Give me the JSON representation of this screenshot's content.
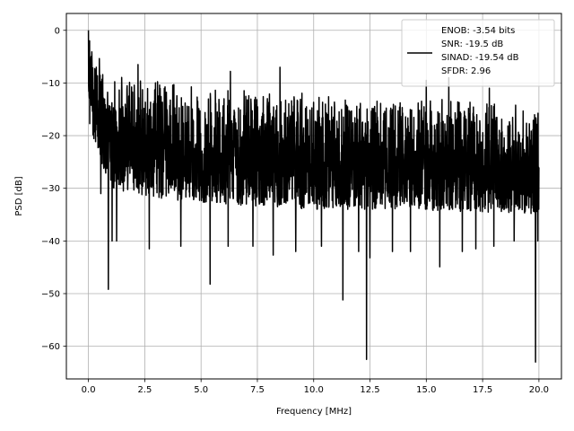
{
  "chart_data": {
    "type": "line",
    "title": "",
    "xlabel": "Frequency [MHz]",
    "ylabel": "PSD [dB]",
    "xlim": [
      -0.98,
      21.0
    ],
    "ylim": [
      -66.2,
      3.2
    ],
    "xticks": [
      0.0,
      2.5,
      5.0,
      7.5,
      10.0,
      12.5,
      15.0,
      17.5,
      20.0
    ],
    "xtick_labels": [
      "0.0",
      "2.5",
      "5.0",
      "7.5",
      "10.0",
      "12.5",
      "15.0",
      "17.5",
      "20.0"
    ],
    "yticks": [
      0,
      -10,
      -20,
      -30,
      -40,
      -50,
      -60
    ],
    "ytick_labels": [
      "0",
      "−10",
      "−20",
      "−30",
      "−40",
      "−50",
      "−60"
    ],
    "grid": true,
    "legend_position": "top-right",
    "line_color": "#000000",
    "legend_lines": [
      "ENOB: -3.54 bits",
      "SNR: -19.5 dB",
      "SINAD: -19.54 dB",
      "SFDR: 2.96"
    ],
    "series": [
      {
        "style": "noisy spectrum, high density",
        "envelope_upper": [
          [
            0.0,
            0.0
          ],
          [
            0.3,
            -4
          ],
          [
            1.0,
            -8
          ],
          [
            2.0,
            -9
          ],
          [
            4.0,
            -10
          ],
          [
            7.0,
            -11
          ],
          [
            10.0,
            -12
          ],
          [
            13.0,
            -13
          ],
          [
            16.0,
            -13
          ],
          [
            20.0,
            -14
          ]
        ],
        "envelope_lower": [
          [
            0.0,
            -17
          ],
          [
            0.3,
            -22
          ],
          [
            1.0,
            -30
          ],
          [
            3.0,
            -32
          ],
          [
            6.0,
            -33
          ],
          [
            10.0,
            -34
          ],
          [
            14.0,
            -34
          ],
          [
            20.0,
            -35
          ]
        ],
        "deep_notches": [
          [
            0.1,
            -12
          ],
          [
            0.55,
            -31
          ],
          [
            0.88,
            -49.2
          ],
          [
            1.05,
            -40
          ],
          [
            1.25,
            -40
          ],
          [
            2.7,
            -41.5
          ],
          [
            4.1,
            -41
          ],
          [
            5.4,
            -48.2
          ],
          [
            6.2,
            -41
          ],
          [
            7.3,
            -41
          ],
          [
            8.2,
            -42.7
          ],
          [
            9.2,
            -42
          ],
          [
            10.35,
            -41
          ],
          [
            11.3,
            -51.2
          ],
          [
            12.0,
            -42
          ],
          [
            12.35,
            -62.5
          ],
          [
            12.5,
            -43.2
          ],
          [
            13.5,
            -42
          ],
          [
            14.3,
            -42
          ],
          [
            15.6,
            -44.9
          ],
          [
            16.6,
            -42
          ],
          [
            17.2,
            -41.5
          ],
          [
            18.0,
            -41
          ],
          [
            18.9,
            -40
          ],
          [
            19.85,
            -63
          ],
          [
            19.95,
            -40
          ]
        ],
        "peaks": [
          [
            0.0,
            0.0
          ],
          [
            0.05,
            -2
          ],
          [
            0.12,
            -5
          ],
          [
            0.35,
            -7
          ],
          [
            2.2,
            -6.5
          ],
          [
            6.3,
            -7.8
          ],
          [
            8.5,
            -7
          ],
          [
            13.5,
            -8
          ],
          [
            15.0,
            -9.5
          ],
          [
            16.0,
            -9
          ],
          [
            17.8,
            -11
          ]
        ],
        "start_value": -17
      }
    ]
  }
}
